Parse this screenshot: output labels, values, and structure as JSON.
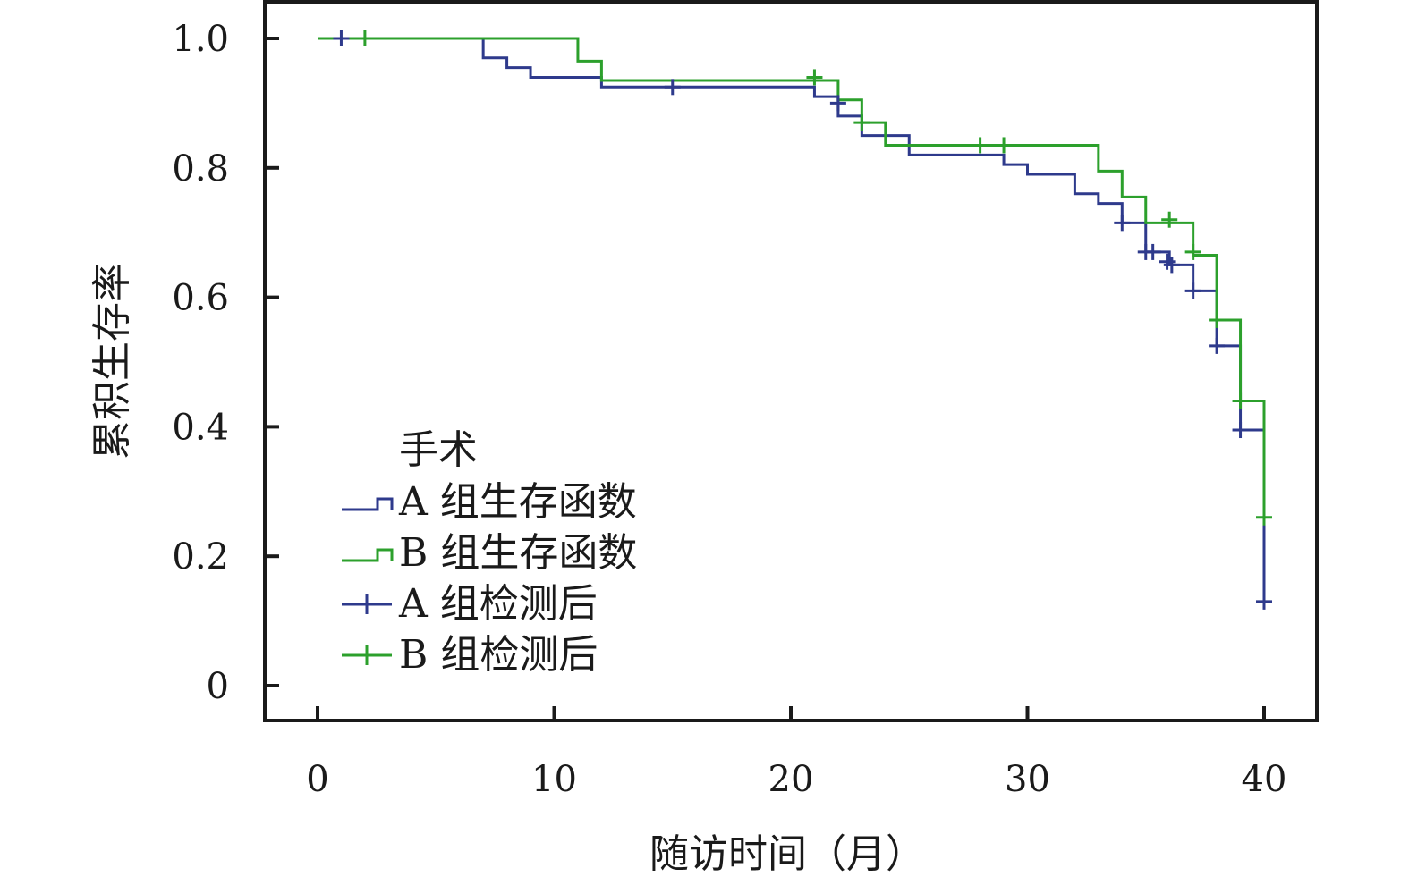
{
  "chart_data": {
    "type": "line",
    "xlabel": "随访时间（月）",
    "ylabel": "累积生存率",
    "xlim": [
      0,
      40
    ],
    "ylim": [
      0,
      1.0
    ],
    "xticks": [
      "0",
      "10",
      "20",
      "30",
      "40"
    ],
    "yticks": [
      "0",
      "0.2",
      "0.4",
      "0.6",
      "0.8",
      "1.0"
    ],
    "grid": false,
    "legend_position": "lower-left",
    "legend_title": "手术",
    "series": [
      {
        "name": "A 组生存函数",
        "color": "#2e3a8c",
        "step": true,
        "x": [
          0,
          7,
          8,
          9,
          12,
          21,
          22,
          23,
          25,
          29,
          30,
          32,
          33,
          34,
          35,
          36,
          37,
          38,
          39,
          40
        ],
        "y": [
          1.0,
          0.97,
          0.955,
          0.94,
          0.925,
          0.91,
          0.88,
          0.85,
          0.82,
          0.805,
          0.79,
          0.76,
          0.745,
          0.715,
          0.67,
          0.65,
          0.61,
          0.525,
          0.395,
          0.13
        ]
      },
      {
        "name": "B 组生存函数",
        "color": "#2ca02c",
        "step": true,
        "x": [
          0,
          11,
          12,
          22,
          23,
          24,
          33,
          34,
          35,
          37,
          38,
          39,
          40
        ],
        "y": [
          1.0,
          0.965,
          0.935,
          0.905,
          0.87,
          0.835,
          0.795,
          0.755,
          0.715,
          0.665,
          0.565,
          0.44,
          0.26
        ]
      },
      {
        "name": "A 组检测后",
        "color": "#2e3a8c",
        "marker": "+",
        "points": [
          [
            1,
            1.0
          ],
          [
            15,
            0.925
          ],
          [
            22,
            0.9
          ],
          [
            34,
            0.715
          ],
          [
            35,
            0.67
          ],
          [
            35.3,
            0.67
          ],
          [
            35.9,
            0.655
          ],
          [
            36.1,
            0.65
          ],
          [
            37,
            0.61
          ],
          [
            38,
            0.525
          ],
          [
            39,
            0.395
          ],
          [
            40,
            0.13
          ]
        ]
      },
      {
        "name": "B 组检测后",
        "color": "#2ca02c",
        "marker": "+",
        "points": [
          [
            2,
            1.0
          ],
          [
            21,
            0.94
          ],
          [
            23,
            0.87
          ],
          [
            28,
            0.835
          ],
          [
            29,
            0.835
          ],
          [
            36,
            0.72
          ],
          [
            37,
            0.67
          ],
          [
            38,
            0.565
          ],
          [
            39,
            0.44
          ],
          [
            40,
            0.26
          ]
        ]
      }
    ]
  }
}
